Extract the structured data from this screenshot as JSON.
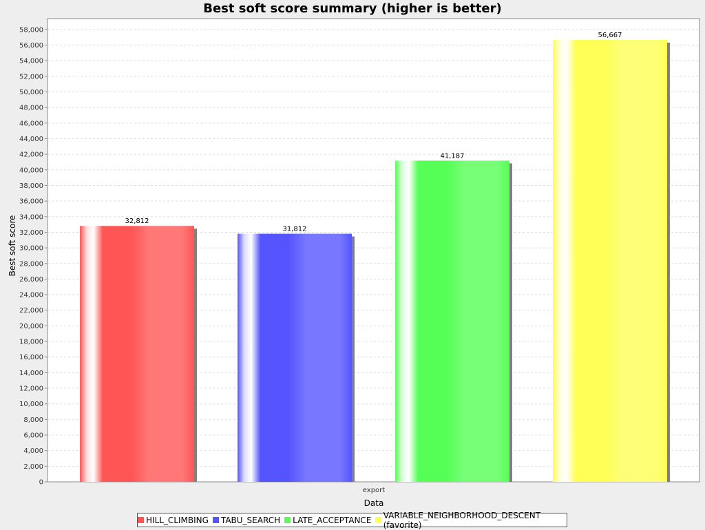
{
  "chart_data": {
    "type": "bar",
    "title": "Best soft score summary (higher is better)",
    "xlabel": "Data",
    "ylabel": "Best soft score",
    "categories": [
      "export"
    ],
    "ylim": [
      0,
      59400
    ],
    "ytick_step": 2000,
    "grid": true,
    "legend_position": "bottom",
    "series": [
      {
        "name": "HILL_CLIMBING",
        "values": [
          32812
        ],
        "label": "32,812",
        "color": "#ff5555"
      },
      {
        "name": "TABU_SEARCH",
        "values": [
          31812
        ],
        "label": "31,812",
        "color": "#5555ff"
      },
      {
        "name": "LATE_ACCEPTANCE",
        "values": [
          41187
        ],
        "label": "41,187",
        "color": "#55ff55"
      },
      {
        "name": "VARIABLE_NEIGHBORHOOD_DESCENT (favorite)",
        "values": [
          56667
        ],
        "label": "56,667",
        "color": "#ffff55"
      }
    ]
  }
}
